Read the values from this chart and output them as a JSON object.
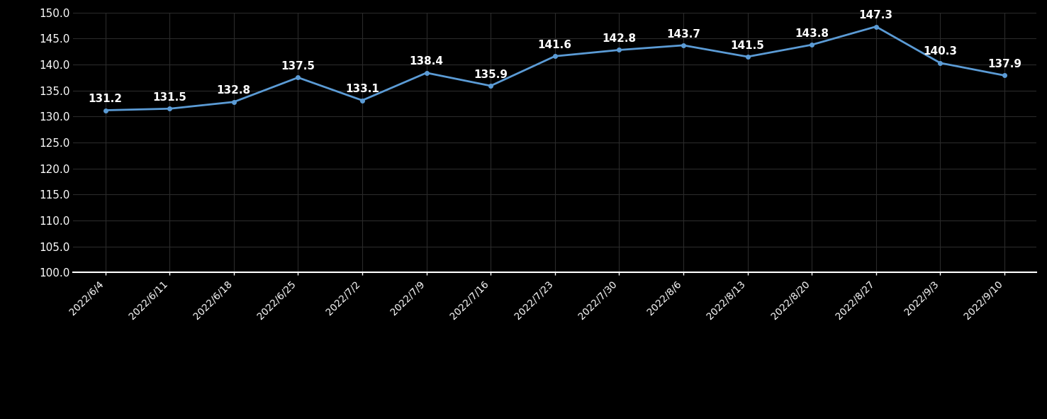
{
  "dates": [
    "2022/6/4",
    "2022/6/11",
    "2022/6/18",
    "2022/6/25",
    "2022/7/2",
    "2022/7/9",
    "2022/7/16",
    "2022/7/23",
    "2022/7/30",
    "2022/8/6",
    "2022/8/13",
    "2022/8/20",
    "2022/8/27",
    "2022/9/3",
    "2022/9/10"
  ],
  "values": [
    131.2,
    131.5,
    132.8,
    137.5,
    133.1,
    138.4,
    135.9,
    141.6,
    142.8,
    143.7,
    141.5,
    143.8,
    147.3,
    140.3,
    137.9
  ],
  "line_color": "#5b9bd5",
  "marker_color": "#5b9bd5",
  "bg_color": "#000000",
  "plot_bg_color": "#000000",
  "grid_color": "#2a2a2a",
  "text_color": "#ffffff",
  "axis_text_color": "#ffffff",
  "bottom_spine_color": "#ffffff",
  "ylim_min": 100.0,
  "ylim_max": 150.0,
  "ytick_step": 5.0,
  "label_fontsize": 11,
  "tick_fontsize": 11,
  "xtick_fontsize": 10
}
